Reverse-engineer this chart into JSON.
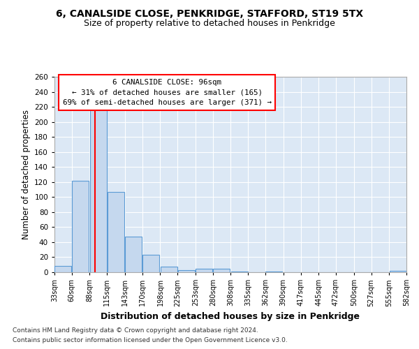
{
  "title1": "6, CANALSIDE CLOSE, PENKRIDGE, STAFFORD, ST19 5TX",
  "title2": "Size of property relative to detached houses in Penkridge",
  "xlabel": "Distribution of detached houses by size in Penkridge",
  "ylabel": "Number of detached properties",
  "annotation_line1": "6 CANALSIDE CLOSE: 96sqm",
  "annotation_line2": "← 31% of detached houses are smaller (165)",
  "annotation_line3": "69% of semi-detached houses are larger (371) →",
  "property_size": 96,
  "bar_bins": [
    33,
    60,
    88,
    115,
    143,
    170,
    198,
    225,
    253,
    280,
    308,
    335,
    362,
    390,
    417,
    445,
    472,
    500,
    527,
    555,
    582
  ],
  "bar_heights": [
    8,
    122,
    220,
    107,
    47,
    23,
    7,
    3,
    5,
    5,
    1,
    0,
    1,
    0,
    0,
    0,
    0,
    0,
    0,
    2
  ],
  "bar_color": "#c5d8ee",
  "bar_edge_color": "#5b9bd5",
  "red_line_x": 96,
  "ylim": [
    0,
    260
  ],
  "yticks": [
    0,
    20,
    40,
    60,
    80,
    100,
    120,
    140,
    160,
    180,
    200,
    220,
    240,
    260
  ],
  "background_color": "#dce8f5",
  "grid_color": "#ffffff",
  "footer_line1": "Contains HM Land Registry data © Crown copyright and database right 2024.",
  "footer_line2": "Contains public sector information licensed under the Open Government Licence v3.0."
}
